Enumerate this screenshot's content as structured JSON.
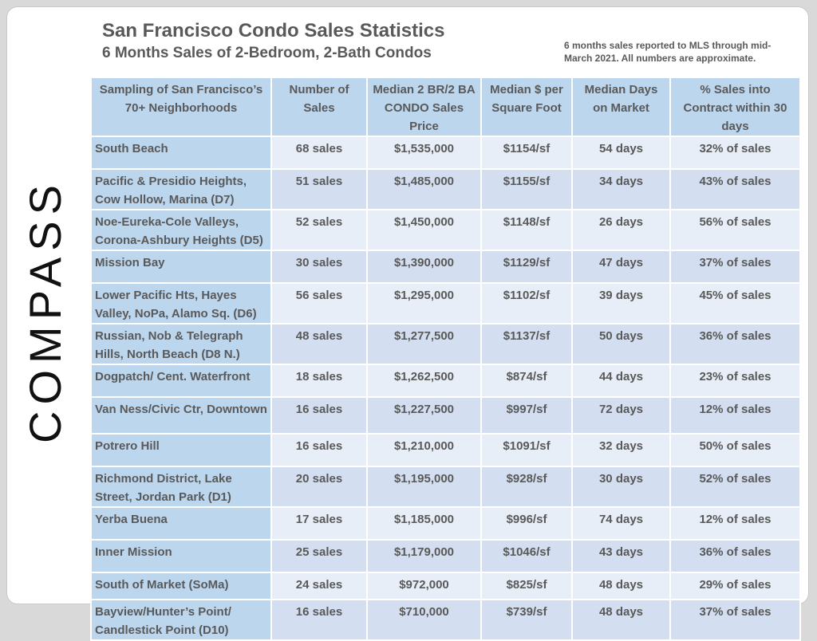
{
  "title": "San Francisco Condo Sales Statistics",
  "subtitle": "6 Months Sales of 2-Bedroom, 2-Bath Condos",
  "note": "6 months sales reported to MLS through mid-March 2021. All numbers are approximate.",
  "logo": "COMPASS",
  "table": {
    "headers": [
      "Sampling of San Francisco’s 70+ Neighborhoods",
      "Number of Sales",
      "Median 2 BR/2 BA CONDO Sales Price",
      "Median $ per Square Foot",
      "Median Days on Market",
      "% Sales into Contract within 30 days"
    ],
    "rows": [
      [
        "South Beach",
        "68 sales",
        "$1,535,000",
        "$1154/sf",
        "54 days",
        "32% of sales"
      ],
      [
        "Pacific & Presidio Heights, Cow Hollow, Marina (D7)",
        "51 sales",
        "$1,485,000",
        "$1155/sf",
        "34 days",
        "43% of sales"
      ],
      [
        "Noe-Eureka-Cole Valleys, Corona-Ashbury Heights (D5)",
        "52 sales",
        "$1,450,000",
        "$1148/sf",
        "26 days",
        "56% of sales"
      ],
      [
        "Mission Bay",
        "30 sales",
        "$1,390,000",
        "$1129/sf",
        "47 days",
        "37% of sales"
      ],
      [
        "Lower Pacific Hts, Hayes Valley, NoPa, Alamo Sq. (D6)",
        "56 sales",
        "$1,295,000",
        "$1102/sf",
        "39 days",
        "45% of sales"
      ],
      [
        "Russian, Nob & Telegraph Hills, North Beach (D8 N.)",
        "48 sales",
        "$1,277,500",
        "$1137/sf",
        "50 days",
        "36% of sales"
      ],
      [
        "Dogpatch/ Cent. Waterfront",
        "18 sales",
        "$1,262,500",
        "$874/sf",
        "44 days",
        "23% of sales"
      ],
      [
        "Van Ness/Civic Ctr, Downtown",
        "16 sales",
        "$1,227,500",
        "$997/sf",
        "72 days",
        "12% of sales"
      ],
      [
        "Potrero Hill",
        "16 sales",
        "$1,210,000",
        "$1091/sf",
        "32 days",
        "50% of sales"
      ],
      [
        "Richmond District, Lake Street, Jordan Park (D1)",
        "20 sales",
        "$1,195,000",
        "$928/sf",
        "30 days",
        "52% of sales"
      ],
      [
        "Yerba Buena",
        "17 sales",
        "$1,185,000",
        "$996/sf",
        "74 days",
        "12% of sales"
      ],
      [
        "Inner Mission",
        "25 sales",
        "$1,179,000",
        "$1046/sf",
        "43 days",
        "36% of sales"
      ],
      [
        "South of Market (SoMa)",
        "24 sales",
        "$972,000",
        "$825/sf",
        "48 days",
        "29% of sales"
      ],
      [
        "Bayview/Hunter’s Point/ Candlestick Point (D10)",
        "16 sales",
        "$710,000",
        "$739/sf",
        "48 days",
        "37% of sales"
      ]
    ]
  }
}
